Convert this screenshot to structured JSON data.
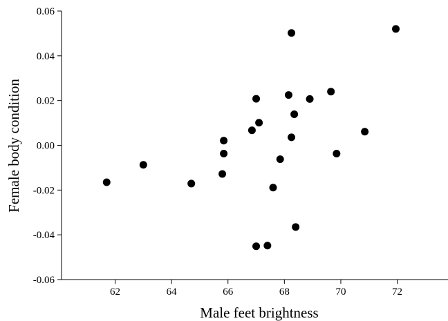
{
  "chart_data": {
    "type": "scatter",
    "title": "",
    "xlabel": "Male feet brightness",
    "ylabel": "Female body condition",
    "xlim": [
      60.1,
      73.8
    ],
    "ylim": [
      -0.06,
      0.06
    ],
    "x_ticks": [
      62,
      64,
      66,
      68,
      70,
      72
    ],
    "x_tick_labels": [
      "62",
      "64",
      "66",
      "68",
      "70",
      "72"
    ],
    "y_ticks": [
      -0.06,
      -0.04,
      -0.02,
      0.0,
      0.02,
      0.04,
      0.06
    ],
    "y_tick_labels": [
      "-0.06",
      "-0.04",
      "-0.02",
      "0.00",
      "0.02",
      "0.04",
      "0.06"
    ],
    "grid": false,
    "series": [
      {
        "color": "#000000",
        "points": [
          [
            61.7,
            -0.0165
          ],
          [
            63.0,
            -0.0087
          ],
          [
            64.7,
            -0.0171
          ],
          [
            65.8,
            -0.0128
          ],
          [
            65.85,
            -0.0037
          ],
          [
            65.85,
            0.0021
          ],
          [
            66.85,
            0.0067
          ],
          [
            67.0,
            0.0208
          ],
          [
            67.1,
            0.0101
          ],
          [
            67.0,
            -0.0451
          ],
          [
            67.4,
            -0.0448
          ],
          [
            67.6,
            -0.0189
          ],
          [
            67.85,
            -0.0062
          ],
          [
            68.15,
            0.0225
          ],
          [
            68.25,
            0.0036
          ],
          [
            68.25,
            0.0502
          ],
          [
            68.35,
            0.0139
          ],
          [
            68.4,
            -0.0365
          ],
          [
            68.9,
            0.0207
          ],
          [
            69.65,
            0.024
          ],
          [
            69.85,
            -0.0037
          ],
          [
            70.85,
            0.0061
          ],
          [
            71.95,
            0.052
          ]
        ]
      }
    ]
  }
}
